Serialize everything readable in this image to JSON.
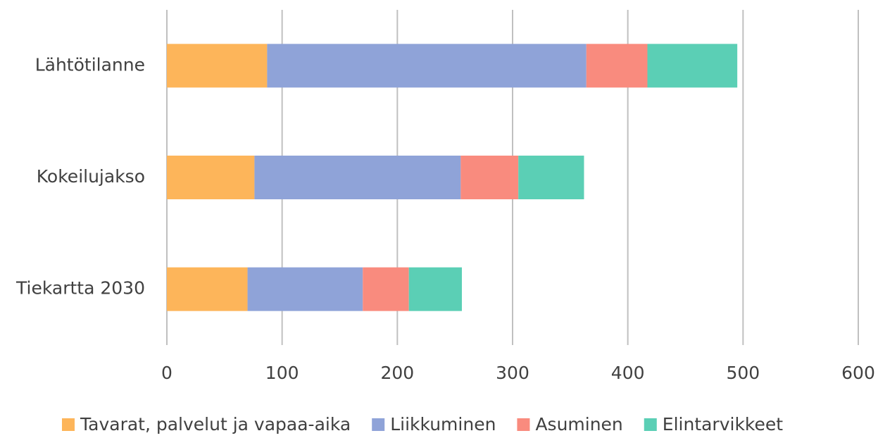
{
  "chart_data": {
    "type": "bar",
    "orientation": "horizontal",
    "stacked": true,
    "categories": [
      "Lähtötilanne",
      "Kokeilujakso",
      "Tiekartta 2030"
    ],
    "series": [
      {
        "name": "Tavarat, palvelut ja vapaa-aika",
        "color": "#fdb55a",
        "values": [
          87,
          76,
          70
        ]
      },
      {
        "name": "Liikkuminen",
        "color": "#8fa3d8",
        "values": [
          277,
          179,
          100
        ]
      },
      {
        "name": "Asuminen",
        "color": "#f98b7e",
        "values": [
          53,
          50,
          40
        ]
      },
      {
        "name": "Elintarvikkeet",
        "color": "#5bcfb5",
        "values": [
          78,
          57,
          46
        ]
      }
    ],
    "xlim": [
      0,
      600
    ],
    "xticks": [
      0,
      100,
      200,
      300,
      400,
      500,
      600
    ],
    "grid": true,
    "legend": "bottom"
  }
}
